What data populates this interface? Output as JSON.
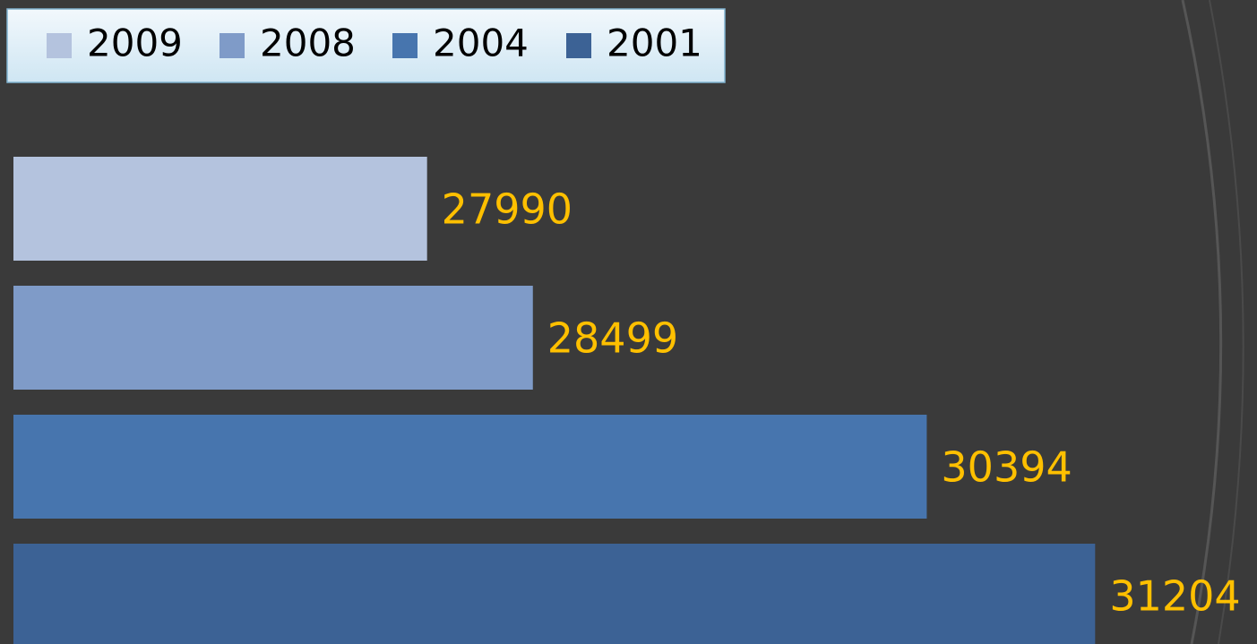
{
  "chart_data": {
    "type": "bar",
    "orientation": "horizontal",
    "categories": [
      null
    ],
    "series": [
      {
        "name": "2009",
        "color": "#b4c3de",
        "values": [
          27990
        ]
      },
      {
        "name": "2008",
        "color": "#7f9bc8",
        "values": [
          28499
        ]
      },
      {
        "name": "2004",
        "color": "#4775ae",
        "values": [
          30394
        ]
      },
      {
        "name": "2001",
        "color": "#3c6295",
        "values": [
          31204
        ]
      }
    ],
    "label_color": "#ffc000",
    "xlim": [
      26000,
      32000
    ],
    "legend": "top-left"
  }
}
